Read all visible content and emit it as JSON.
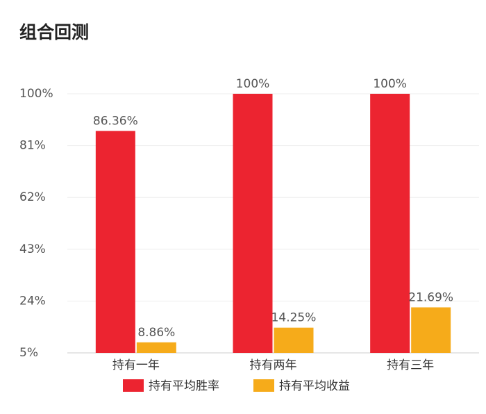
{
  "chart_data": {
    "type": "bar",
    "title": "组合回测",
    "categories": [
      "持有一年",
      "持有两年",
      "持有三年"
    ],
    "series": [
      {
        "name": "持有平均胜率",
        "color": "#ec2430",
        "values": [
          86.36,
          100,
          100
        ],
        "value_labels": [
          "86.36%",
          "100%",
          "100%"
        ]
      },
      {
        "name": "持有平均收益",
        "color": "#f6ab1a",
        "values": [
          8.86,
          14.25,
          21.69
        ],
        "value_labels": [
          "8.86%",
          "14.25%",
          "21.69%"
        ]
      }
    ],
    "ylim": [
      5,
      100
    ],
    "yticks": [
      {
        "value": 5,
        "label": "5%"
      },
      {
        "value": 24,
        "label": "24%"
      },
      {
        "value": 43,
        "label": "43%"
      },
      {
        "value": 62,
        "label": "62%"
      },
      {
        "value": 81,
        "label": "81%"
      },
      {
        "value": 100,
        "label": "100%"
      }
    ],
    "grid": true,
    "legend": "bottom"
  }
}
